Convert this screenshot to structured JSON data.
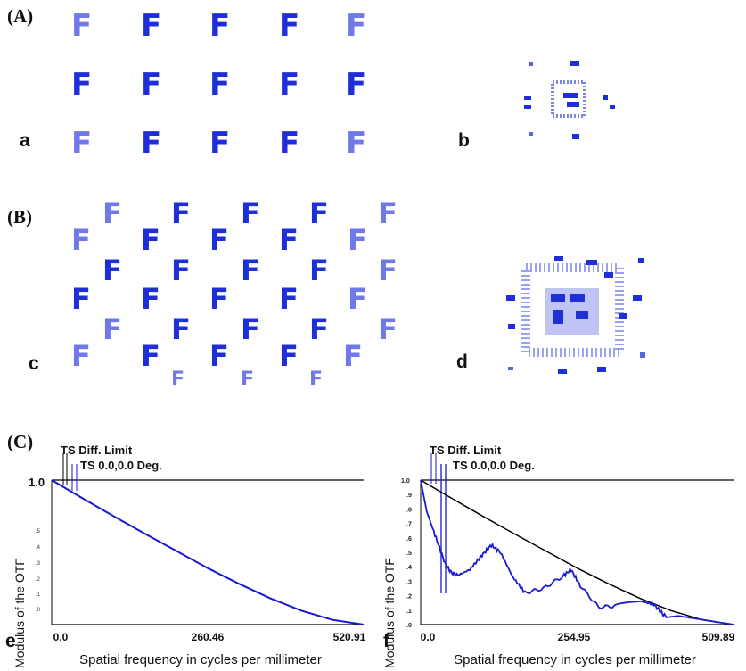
{
  "panel_labels": {
    "A": "(A)",
    "B": "(B)",
    "C": "(C)"
  },
  "sub_labels": {
    "a": "a",
    "b": "b",
    "c": "c",
    "d": "d",
    "e": "e",
    "f": "f"
  },
  "letter": "F",
  "chart_data": [
    {
      "type": "line",
      "ylabel": "Modulus of the OTF",
      "xlabel": "Spatial frequency in cycles per millimeter",
      "xlim": [
        0.0,
        520.91
      ],
      "ylim": [
        0.0,
        1.0
      ],
      "x_tick_labels": [
        "0.0",
        "260.46",
        "520.91"
      ],
      "y_tick_labels": [
        "1.0",
        ".9",
        ".8",
        ".7",
        ".6",
        ".5",
        ".4",
        ".3",
        ".2",
        ".1",
        ".0"
      ],
      "legend": [
        "TS Diff. Limit",
        "TS 0.0,0.0 Deg."
      ],
      "series": [
        {
          "name": "TS Diff. Limit",
          "color": "#000000",
          "x": [
            0,
            52.09,
            104.18,
            156.27,
            208.36,
            260.46,
            312.55,
            364.64,
            416.73,
            468.82,
            520.91
          ],
          "y": [
            1.0,
            0.873,
            0.748,
            0.627,
            0.509,
            0.391,
            0.283,
            0.183,
            0.097,
            0.033,
            0.0
          ]
        },
        {
          "name": "TS 0.0,0.0 Deg.",
          "color": "#1a1ad0",
          "x": [
            0,
            52.09,
            104.18,
            156.27,
            208.36,
            260.46,
            312.55,
            364.64,
            416.73,
            468.82,
            520.91
          ],
          "y": [
            1.0,
            0.873,
            0.748,
            0.627,
            0.509,
            0.391,
            0.283,
            0.183,
            0.097,
            0.033,
            0.0
          ]
        }
      ]
    },
    {
      "type": "line",
      "ylabel": "Modulus of the OTF",
      "xlabel": "Spatial frequency in cycles per millimeter",
      "xlim": [
        0.0,
        509.89
      ],
      "ylim": [
        0.0,
        1.0
      ],
      "x_tick_labels": [
        "0.0",
        "254.95",
        "509.89"
      ],
      "y_tick_labels": [
        "1.0",
        ".9",
        ".8",
        ".7",
        ".6",
        ".5",
        ".4",
        ".3",
        ".2",
        ".1",
        ".0"
      ],
      "legend": [
        "TS Diff. Limit",
        "TS 0.0,0.0 Deg."
      ],
      "series": [
        {
          "name": "TS Diff. Limit",
          "color": "#000000",
          "x": [
            0,
            50.99,
            101.98,
            152.97,
            203.96,
            254.95,
            305.93,
            356.92,
            407.91,
            458.9,
            509.89
          ],
          "y": [
            1.0,
            0.873,
            0.748,
            0.627,
            0.509,
            0.391,
            0.283,
            0.183,
            0.097,
            0.033,
            0.0
          ]
        },
        {
          "name": "TS 0.0,0.0 Deg.",
          "color": "#1a1ad0",
          "x": [
            0,
            10,
            25,
            40,
            50,
            60,
            80,
            100,
            115,
            130,
            150,
            170,
            200,
            230,
            245,
            260,
            290,
            320,
            360,
            380,
            400,
            420,
            450,
            480,
            509.89
          ],
          "y": [
            1.0,
            0.78,
            0.6,
            0.42,
            0.36,
            0.34,
            0.38,
            0.48,
            0.55,
            0.5,
            0.33,
            0.22,
            0.25,
            0.33,
            0.38,
            0.27,
            0.12,
            0.13,
            0.16,
            0.14,
            0.05,
            0.06,
            0.04,
            0.02,
            0.0
          ]
        }
      ]
    }
  ]
}
